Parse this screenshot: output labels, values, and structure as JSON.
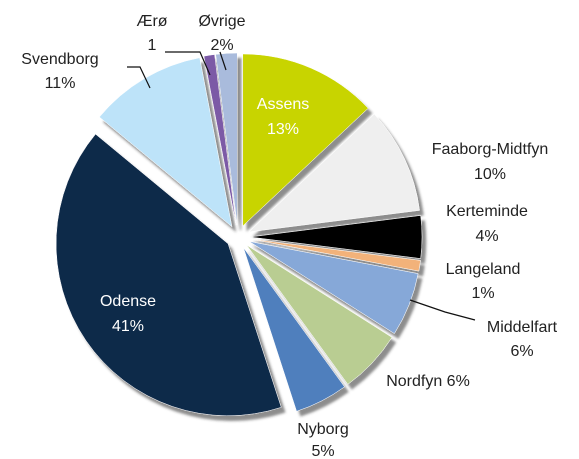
{
  "chart_data": {
    "type": "pie",
    "categories": [
      "Assens",
      "Faaborg-Midtfyn",
      "Kerteminde",
      "Langeland",
      "Middelfart",
      "Nordfyn",
      "Nyborg",
      "Odense",
      "Svendborg",
      "Ærø",
      "Øvrige"
    ],
    "values": [
      13,
      10,
      4,
      1,
      6,
      6,
      5,
      41,
      11,
      1,
      2
    ],
    "value_labels": [
      "13%",
      "10%",
      "4%",
      "1%",
      "6%",
      "6%",
      "5%",
      "41%",
      "11%",
      "1",
      "2%"
    ],
    "colors": [
      "#c8d400",
      "#efefef",
      "#050505",
      "#f2b27a",
      "#86a8d8",
      "#b9cd92",
      "#4f7fbd",
      "#11294a",
      "#bde3f9",
      "#7b5aa6",
      "#a9bbdc"
    ]
  }
}
